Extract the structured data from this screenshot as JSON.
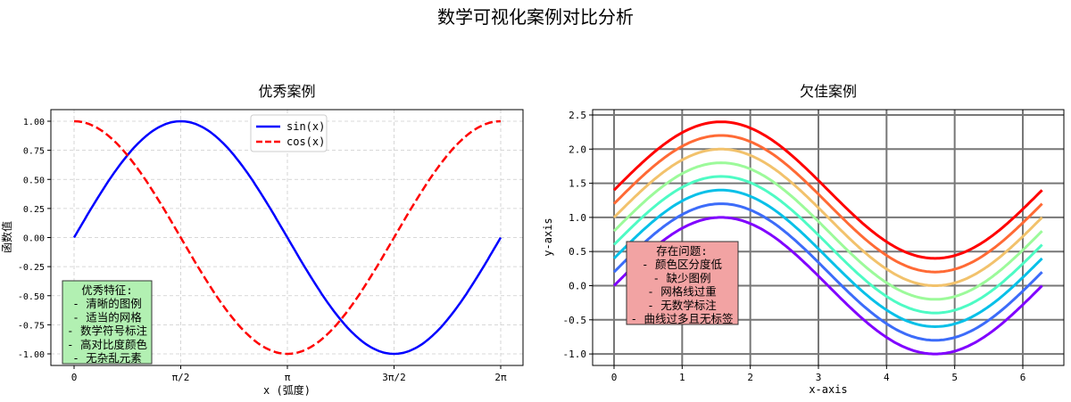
{
  "suptitle": "数学可视化案例对比分析",
  "chart_data": [
    {
      "type": "line",
      "title": "优秀案例",
      "xlabel": "x (弧度)",
      "ylabel": "函数值",
      "xlim": [
        -0.35,
        6.6
      ],
      "ylim": [
        -1.1,
        1.1
      ],
      "grid": true,
      "grid_style": "dashed light",
      "xticks": [
        {
          "value": 0,
          "label": "0"
        },
        {
          "value": 1.5708,
          "label": "π/2"
        },
        {
          "value": 3.1416,
          "label": "π"
        },
        {
          "value": 4.7124,
          "label": "3π/2"
        },
        {
          "value": 6.2832,
          "label": "2π"
        }
      ],
      "yticks": [
        "-1.00",
        "-0.75",
        "-0.50",
        "-0.25",
        "0.00",
        "0.25",
        "0.50",
        "0.75",
        "1.00"
      ],
      "legend_position": "top-center",
      "series": [
        {
          "name": "sin(x)",
          "function": "sin(x)",
          "x_range": [
            0,
            6.2832
          ],
          "color": "#0000ff",
          "style": "solid"
        },
        {
          "name": "cos(x)",
          "function": "cos(x)",
          "x_range": [
            0,
            6.2832
          ],
          "color": "#ff0000",
          "style": "dashed"
        }
      ],
      "annotation": {
        "lines": [
          "优秀特征:",
          "- 清晰的图例",
          "- 适当的网格",
          "- 数学符号标注",
          "- 高对比度颜色",
          "- 无杂乱元素"
        ],
        "background": "#b2f0b2"
      }
    },
    {
      "type": "line",
      "title": "欠佳案例",
      "xlabel": "x-axis",
      "ylabel": "y-axis",
      "xlim": [
        -0.31,
        6.6
      ],
      "ylim": [
        -1.17,
        2.58
      ],
      "grid": true,
      "grid_style": "thick gray",
      "xticks": [
        "0",
        "1",
        "2",
        "3",
        "4",
        "5",
        "6"
      ],
      "yticks": [
        "-1.0",
        "-0.5",
        "0.0",
        "0.5",
        "1.0",
        "1.5",
        "2.0",
        "2.5"
      ],
      "series": [
        {
          "function": "sin(x)+0.0",
          "offset": 0.0,
          "color": "#8000ff"
        },
        {
          "function": "sin(x)+0.2",
          "offset": 0.2,
          "color": "#3c6cf9"
        },
        {
          "function": "sin(x)+0.4",
          "offset": 0.4,
          "color": "#08c0e8"
        },
        {
          "function": "sin(x)+0.6",
          "offset": 0.6,
          "color": "#4efbc4"
        },
        {
          "function": "sin(x)+0.8",
          "offset": 0.8,
          "color": "#9cfa9a"
        },
        {
          "function": "sin(x)+1.0",
          "offset": 1.0,
          "color": "#f2c26c"
        },
        {
          "function": "sin(x)+1.2",
          "offset": 1.2,
          "color": "#ff6a35"
        },
        {
          "function": "sin(x)+1.4",
          "offset": 1.4,
          "color": "#ff0000"
        }
      ],
      "x_range": [
        0,
        6.2832
      ],
      "annotation": {
        "lines": [
          "存在问题:",
          "- 颜色区分度低",
          "- 缺少图例",
          "- 网格线过重",
          "- 无数学标注",
          "- 曲线过多且无标签"
        ],
        "background": "#f2a3a3"
      }
    }
  ]
}
